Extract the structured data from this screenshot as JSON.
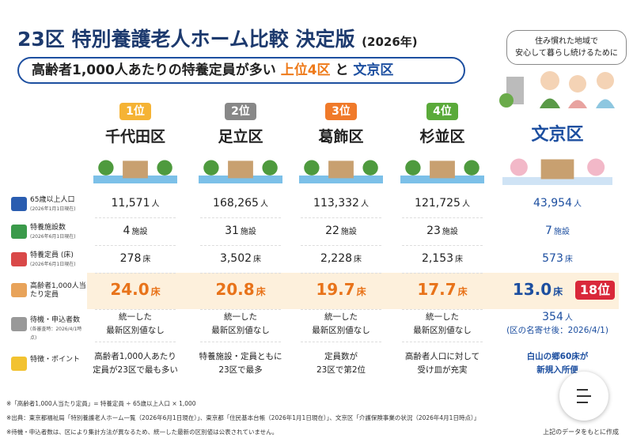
{
  "header": {
    "title": "23区 特別養護老人ホーム比較 決定版",
    "year": "(2026年)",
    "subtitle": {
      "lead": "高齢者1,000人あたりの特養定員が多い",
      "top": "上位4区",
      "joiner": "と",
      "featured": "文京区"
    }
  },
  "bubble": [
    "住み慣れた地域で",
    "安心して暮らし続けるために"
  ],
  "row_labels": [
    {
      "label": "65歳以上人口",
      "note": "(2026年1月1日現在)"
    },
    {
      "label": "特養施設数",
      "note": "(2026年6月1日現在)"
    },
    {
      "label": "特養定員 (床)",
      "note": "(2026年6月1日現在)"
    },
    {
      "label": "高齢者1,000人当たり定員"
    },
    {
      "label": "待機・申込者数",
      "note": "(各審査時：2026/4/1時点)"
    },
    {
      "label": "特徴・ポイント"
    }
  ],
  "wards": [
    {
      "rank": "1位",
      "name": "千代田区",
      "population": {
        "value": "11,571",
        "unit": "人"
      },
      "facilities": {
        "value": "4",
        "unit": "施設"
      },
      "capacity": {
        "value": "278",
        "unit": "床"
      },
      "per_1000": {
        "value": "24.0",
        "unit": "床"
      },
      "waiting": [
        "統一した",
        "最新区別値なし"
      ],
      "feature": [
        "高齢者1,000人あたり",
        "定員が23区で最も多い"
      ]
    },
    {
      "rank": "2位",
      "name": "足立区",
      "population": {
        "value": "168,265",
        "unit": "人"
      },
      "facilities": {
        "value": "31",
        "unit": "施設"
      },
      "capacity": {
        "value": "3,502",
        "unit": "床"
      },
      "per_1000": {
        "value": "20.8",
        "unit": "床"
      },
      "waiting": [
        "統一した",
        "最新区別値なし"
      ],
      "feature": [
        "特養施設・定員ともに",
        "23区で最多"
      ]
    },
    {
      "rank": "3位",
      "name": "葛飾区",
      "population": {
        "value": "113,332",
        "unit": "人"
      },
      "facilities": {
        "value": "22",
        "unit": "施設"
      },
      "capacity": {
        "value": "2,228",
        "unit": "床"
      },
      "per_1000": {
        "value": "19.7",
        "unit": "床"
      },
      "waiting": [
        "統一した",
        "最新区別値なし"
      ],
      "feature": [
        "定員数が",
        "23区で第2位"
      ]
    },
    {
      "rank": "4位",
      "name": "杉並区",
      "population": {
        "value": "121,725",
        "unit": "人"
      },
      "facilities": {
        "value": "23",
        "unit": "施設"
      },
      "capacity": {
        "value": "2,153",
        "unit": "床"
      },
      "per_1000": {
        "value": "17.7",
        "unit": "床"
      },
      "waiting": [
        "統一した",
        "最新区別値なし"
      ],
      "feature": [
        "高齢者人口に対して",
        "受け皿が充実"
      ]
    }
  ],
  "featured": {
    "name": "文京区",
    "rank": "18位",
    "population": {
      "value": "43,954",
      "unit": "人"
    },
    "facilities": {
      "value": "7",
      "unit": "施設"
    },
    "capacity": {
      "value": "573",
      "unit": "床"
    },
    "per_1000": {
      "value": "13.0",
      "unit": "床"
    },
    "waiting": {
      "value": "354",
      "unit": "人",
      "note": "(区の名寄せ後：2026/4/1)"
    },
    "feature": [
      "白山の郷60床が",
      "新規入所便"
    ]
  },
  "footnotes": [
    "※「高齢者1,000人当たり定員」= 特養定員 ÷ 65歳以上人口 × 1,000",
    "※出典：東京都福祉局「特別養護老人ホーム一覧（2026年6月1日現在）」、東京都「住民基本台帳（2026年1月1日現在）」、文京区「介護保険事業の状況（2026年4月1日時点）」",
    "※待機・申込者数は、区により集計方法が異なるため、統一した最新の区別値は公表されていません。"
  ],
  "credit": "上記のデータをもとに作成"
}
